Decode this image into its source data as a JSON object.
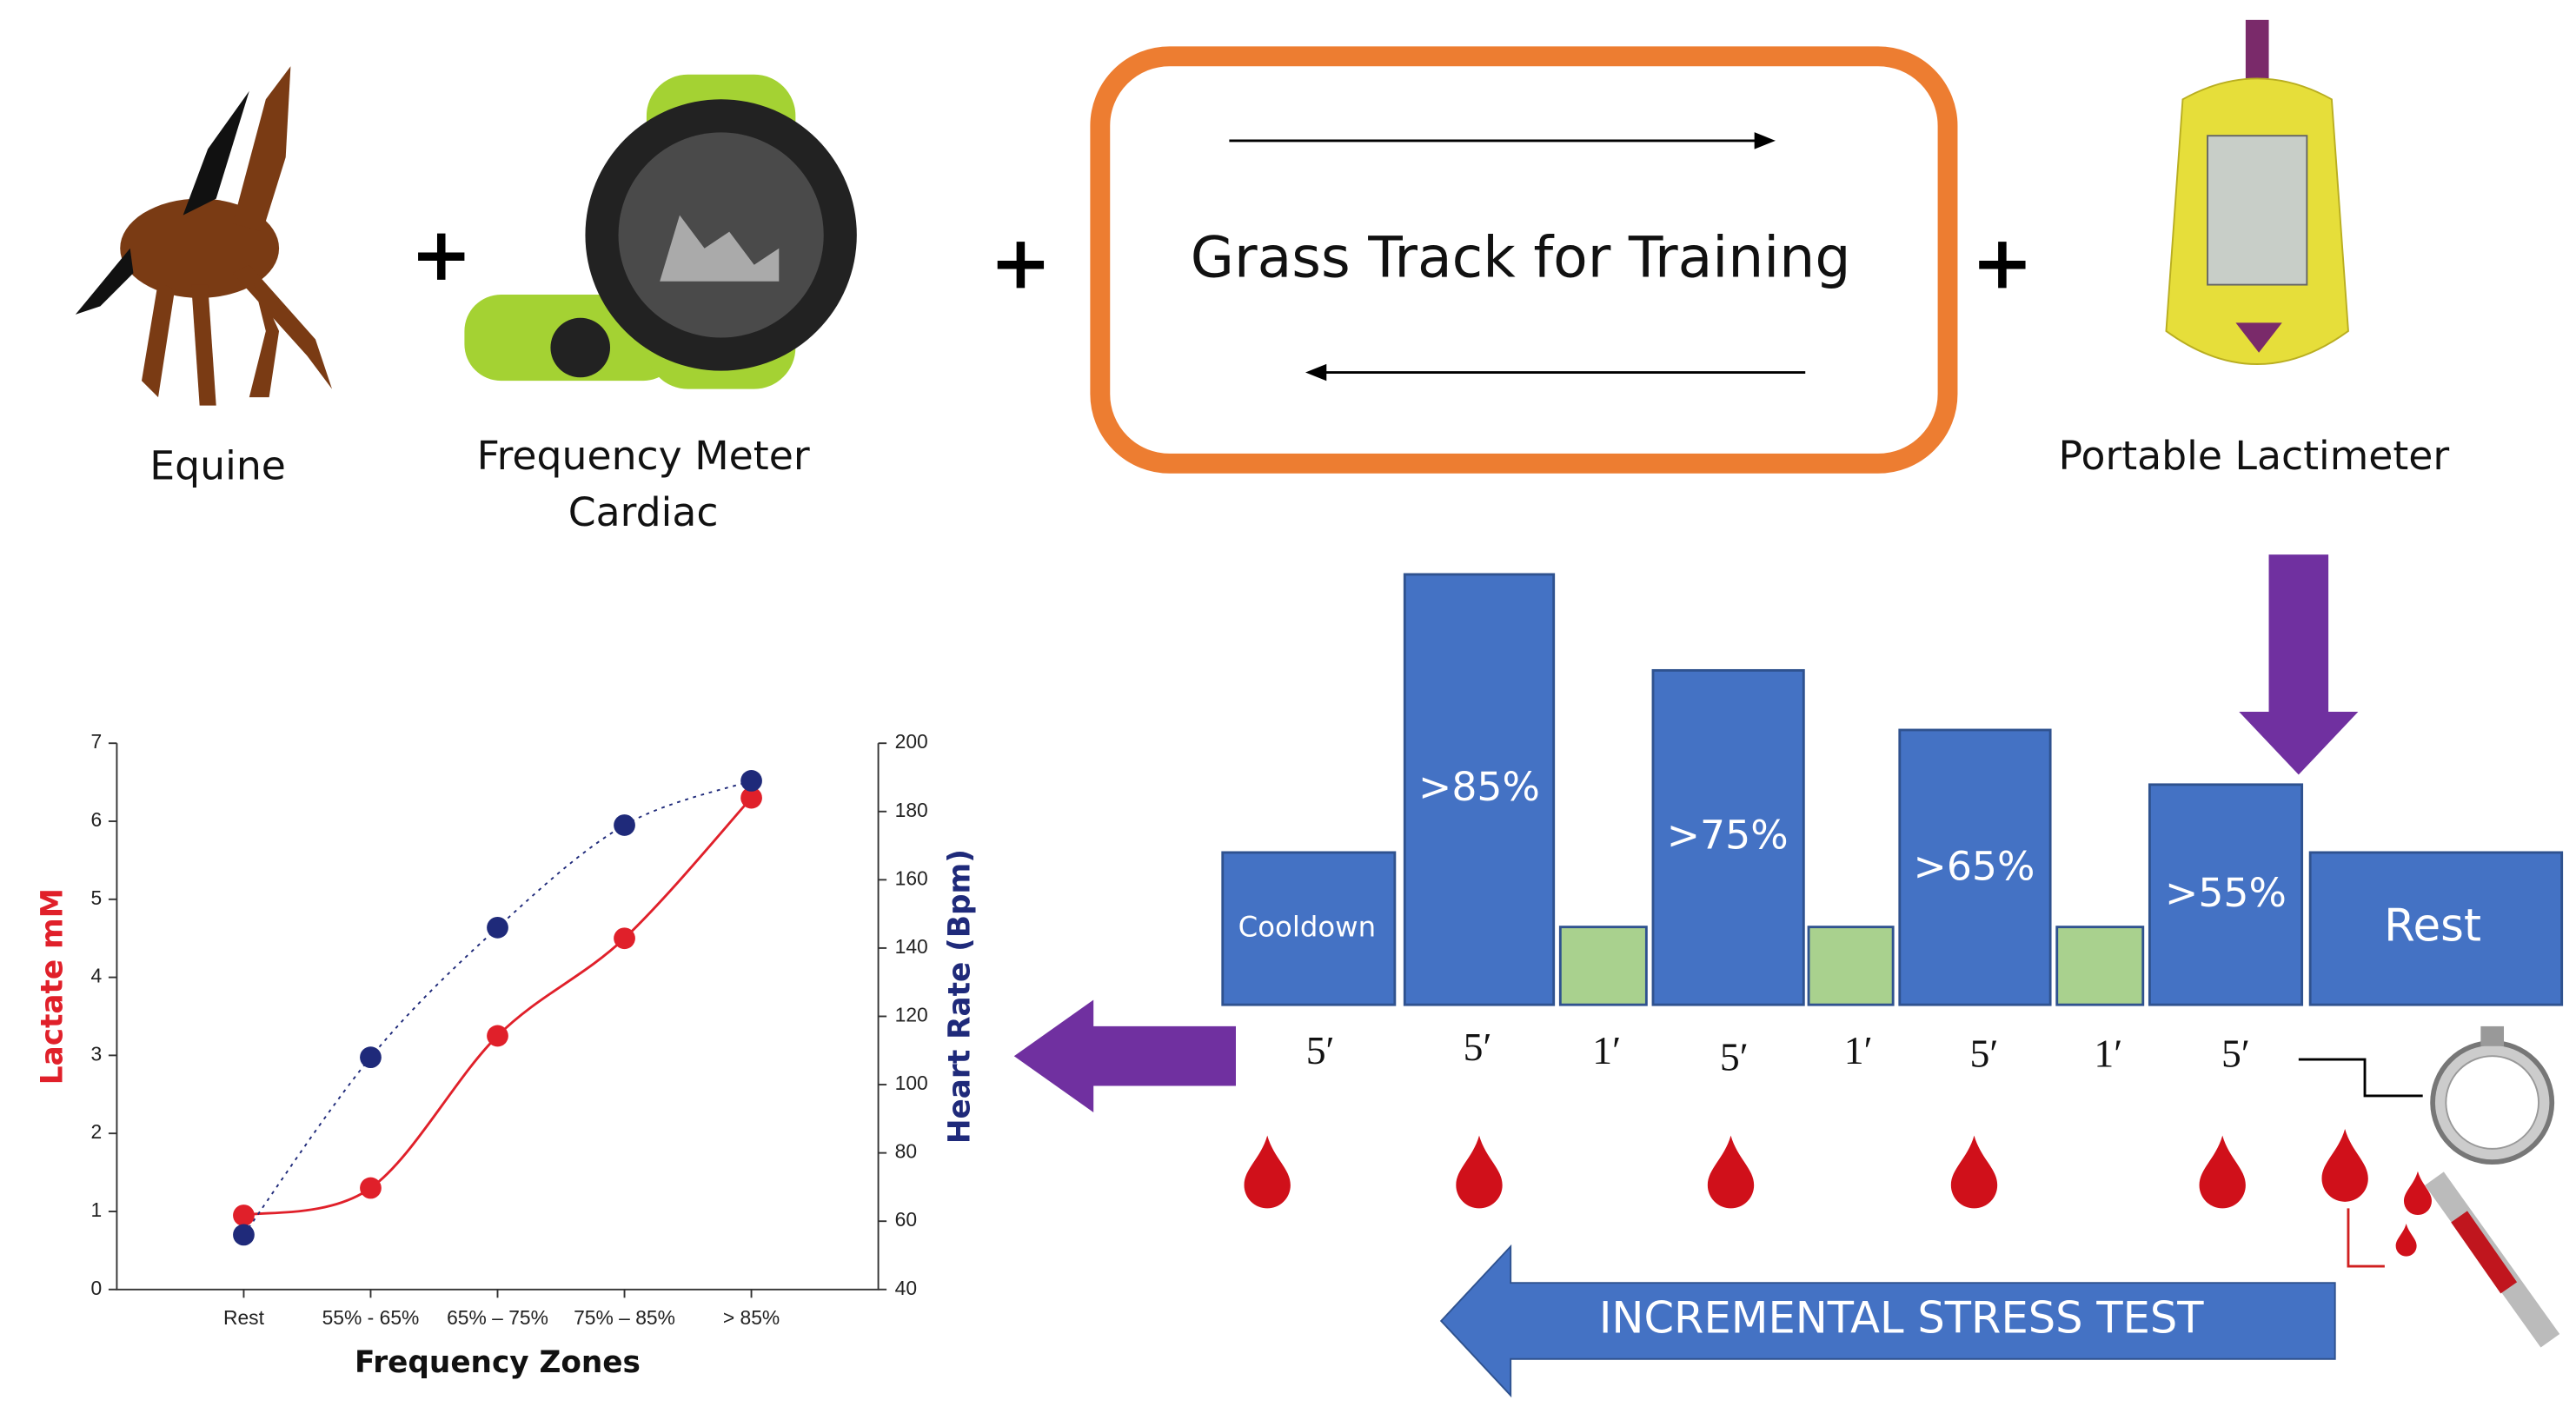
{
  "labels": {
    "equine": "Equine",
    "meter": [
      "Frequency Meter",
      "Cardiac"
    ],
    "track": "Grass Track for Training",
    "lactimeter": "Portable Lactimeter"
  },
  "protocol": {
    "blocks": [
      "Cooldown",
      ">85%",
      ">75%",
      ">65%",
      ">55%",
      "Rest"
    ],
    "durations": [
      "5′",
      "5′",
      "1′",
      "5′",
      "1′",
      "5′",
      "1′",
      "5′"
    ],
    "arrow": "INCREMENTAL STRESS TEST"
  },
  "chart_data": {
    "type": "line",
    "x_label": "Frequency Zones",
    "y_label": "Lactate mM",
    "y2_label": "Heart Rate (Bpm)",
    "categories": [
      "Rest",
      "55% - 65%",
      "65% – 75%",
      "75% – 85%",
      "> 85%"
    ],
    "series": [
      {
        "name": "Lactate mM",
        "color": "#e0202a",
        "values": [
          0.95,
          1.3,
          3.25,
          4.5,
          6.3
        ],
        "smooth": true,
        "dash": false
      },
      {
        "name": "Heart Rate (Bpm)",
        "color": "#1f2a7a",
        "axis": "y2",
        "values": [
          56,
          108,
          146,
          176,
          189
        ],
        "smooth": true,
        "dash": true
      }
    ],
    "ylim": [
      0,
      7
    ],
    "yticks": [
      0,
      1,
      2,
      3,
      4,
      5,
      6,
      7
    ],
    "y2lim": [
      40,
      200
    ],
    "y2ticks": [
      40,
      60,
      80,
      100,
      120,
      140,
      160,
      180,
      200
    ]
  }
}
